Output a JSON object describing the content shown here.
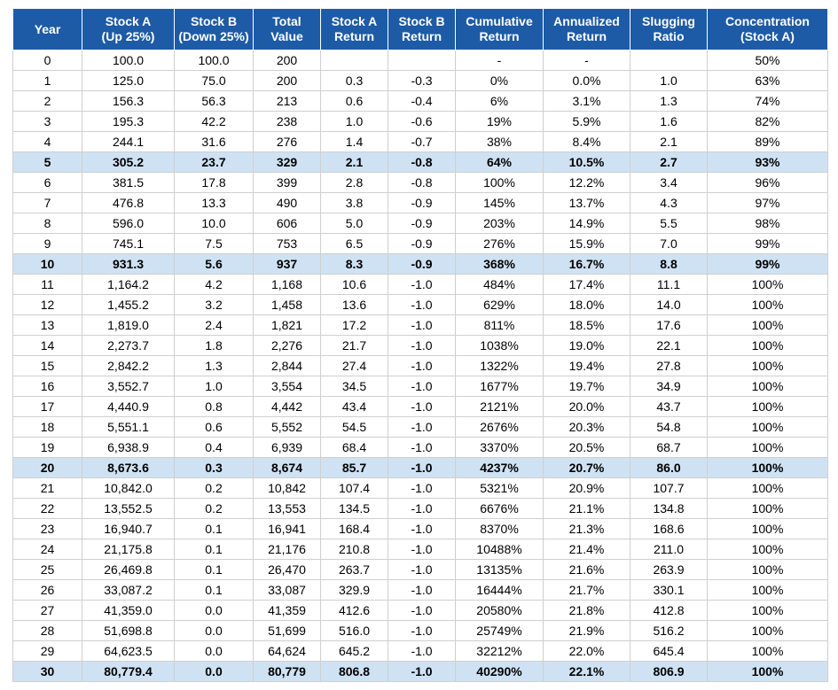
{
  "table": {
    "headers": [
      "Year",
      "Stock A\n(Up 25%)",
      "Stock B\n(Down 25%)",
      "Total\nValue",
      "Stock A\nReturn",
      "Stock B\nReturn",
      "Cumulative\nReturn",
      "Annualized\nReturn",
      "Slugging\nRatio",
      "Concentration\n(Stock A)"
    ],
    "rows": [
      {
        "cells": [
          "0",
          "100.0",
          "100.0",
          "200",
          null,
          null,
          "-",
          "-",
          null,
          "50%"
        ],
        "highlight": false
      },
      {
        "cells": [
          "1",
          "125.0",
          "75.0",
          "200",
          "0.3",
          "-0.3",
          "0%",
          "0.0%",
          "1.0",
          "63%"
        ],
        "highlight": false
      },
      {
        "cells": [
          "2",
          "156.3",
          "56.3",
          "213",
          "0.6",
          "-0.4",
          "6%",
          "3.1%",
          "1.3",
          "74%"
        ],
        "highlight": false
      },
      {
        "cells": [
          "3",
          "195.3",
          "42.2",
          "238",
          "1.0",
          "-0.6",
          "19%",
          "5.9%",
          "1.6",
          "82%"
        ],
        "highlight": false
      },
      {
        "cells": [
          "4",
          "244.1",
          "31.6",
          "276",
          "1.4",
          "-0.7",
          "38%",
          "8.4%",
          "2.1",
          "89%"
        ],
        "highlight": false
      },
      {
        "cells": [
          "5",
          "305.2",
          "23.7",
          "329",
          "2.1",
          "-0.8",
          "64%",
          "10.5%",
          "2.7",
          "93%"
        ],
        "highlight": true
      },
      {
        "cells": [
          "6",
          "381.5",
          "17.8",
          "399",
          "2.8",
          "-0.8",
          "100%",
          "12.2%",
          "3.4",
          "96%"
        ],
        "highlight": false
      },
      {
        "cells": [
          "7",
          "476.8",
          "13.3",
          "490",
          "3.8",
          "-0.9",
          "145%",
          "13.7%",
          "4.3",
          "97%"
        ],
        "highlight": false
      },
      {
        "cells": [
          "8",
          "596.0",
          "10.0",
          "606",
          "5.0",
          "-0.9",
          "203%",
          "14.9%",
          "5.5",
          "98%"
        ],
        "highlight": false
      },
      {
        "cells": [
          "9",
          "745.1",
          "7.5",
          "753",
          "6.5",
          "-0.9",
          "276%",
          "15.9%",
          "7.0",
          "99%"
        ],
        "highlight": false
      },
      {
        "cells": [
          "10",
          "931.3",
          "5.6",
          "937",
          "8.3",
          "-0.9",
          "368%",
          "16.7%",
          "8.8",
          "99%"
        ],
        "highlight": true
      },
      {
        "cells": [
          "11",
          "1,164.2",
          "4.2",
          "1,168",
          "10.6",
          "-1.0",
          "484%",
          "17.4%",
          "11.1",
          "100%"
        ],
        "highlight": false
      },
      {
        "cells": [
          "12",
          "1,455.2",
          "3.2",
          "1,458",
          "13.6",
          "-1.0",
          "629%",
          "18.0%",
          "14.0",
          "100%"
        ],
        "highlight": false
      },
      {
        "cells": [
          "13",
          "1,819.0",
          "2.4",
          "1,821",
          "17.2",
          "-1.0",
          "811%",
          "18.5%",
          "17.6",
          "100%"
        ],
        "highlight": false
      },
      {
        "cells": [
          "14",
          "2,273.7",
          "1.8",
          "2,276",
          "21.7",
          "-1.0",
          "1038%",
          "19.0%",
          "22.1",
          "100%"
        ],
        "highlight": false
      },
      {
        "cells": [
          "15",
          "2,842.2",
          "1.3",
          "2,844",
          "27.4",
          "-1.0",
          "1322%",
          "19.4%",
          "27.8",
          "100%"
        ],
        "highlight": false
      },
      {
        "cells": [
          "16",
          "3,552.7",
          "1.0",
          "3,554",
          "34.5",
          "-1.0",
          "1677%",
          "19.7%",
          "34.9",
          "100%"
        ],
        "highlight": false
      },
      {
        "cells": [
          "17",
          "4,440.9",
          "0.8",
          "4,442",
          "43.4",
          "-1.0",
          "2121%",
          "20.0%",
          "43.7",
          "100%"
        ],
        "highlight": false
      },
      {
        "cells": [
          "18",
          "5,551.1",
          "0.6",
          "5,552",
          "54.5",
          "-1.0",
          "2676%",
          "20.3%",
          "54.8",
          "100%"
        ],
        "highlight": false
      },
      {
        "cells": [
          "19",
          "6,938.9",
          "0.4",
          "6,939",
          "68.4",
          "-1.0",
          "3370%",
          "20.5%",
          "68.7",
          "100%"
        ],
        "highlight": false
      },
      {
        "cells": [
          "20",
          "8,673.6",
          "0.3",
          "8,674",
          "85.7",
          "-1.0",
          "4237%",
          "20.7%",
          "86.0",
          "100%"
        ],
        "highlight": true
      },
      {
        "cells": [
          "21",
          "10,842.0",
          "0.2",
          "10,842",
          "107.4",
          "-1.0",
          "5321%",
          "20.9%",
          "107.7",
          "100%"
        ],
        "highlight": false
      },
      {
        "cells": [
          "22",
          "13,552.5",
          "0.2",
          "13,553",
          "134.5",
          "-1.0",
          "6676%",
          "21.1%",
          "134.8",
          "100%"
        ],
        "highlight": false
      },
      {
        "cells": [
          "23",
          "16,940.7",
          "0.1",
          "16,941",
          "168.4",
          "-1.0",
          "8370%",
          "21.3%",
          "168.6",
          "100%"
        ],
        "highlight": false
      },
      {
        "cells": [
          "24",
          "21,175.8",
          "0.1",
          "21,176",
          "210.8",
          "-1.0",
          "10488%",
          "21.4%",
          "211.0",
          "100%"
        ],
        "highlight": false
      },
      {
        "cells": [
          "25",
          "26,469.8",
          "0.1",
          "26,470",
          "263.7",
          "-1.0",
          "13135%",
          "21.6%",
          "263.9",
          "100%"
        ],
        "highlight": false
      },
      {
        "cells": [
          "26",
          "33,087.2",
          "0.1",
          "33,087",
          "329.9",
          "-1.0",
          "16444%",
          "21.7%",
          "330.1",
          "100%"
        ],
        "highlight": false
      },
      {
        "cells": [
          "27",
          "41,359.0",
          "0.0",
          "41,359",
          "412.6",
          "-1.0",
          "20580%",
          "21.8%",
          "412.8",
          "100%"
        ],
        "highlight": false
      },
      {
        "cells": [
          "28",
          "51,698.8",
          "0.0",
          "51,699",
          "516.0",
          "-1.0",
          "25749%",
          "21.9%",
          "516.2",
          "100%"
        ],
        "highlight": false
      },
      {
        "cells": [
          "29",
          "64,623.5",
          "0.0",
          "64,624",
          "645.2",
          "-1.0",
          "32212%",
          "22.0%",
          "645.4",
          "100%"
        ],
        "highlight": false
      },
      {
        "cells": [
          "30",
          "80,779.4",
          "0.0",
          "80,779",
          "806.8",
          "-1.0",
          "40290%",
          "22.1%",
          "806.9",
          "100%"
        ],
        "highlight": true
      }
    ]
  }
}
